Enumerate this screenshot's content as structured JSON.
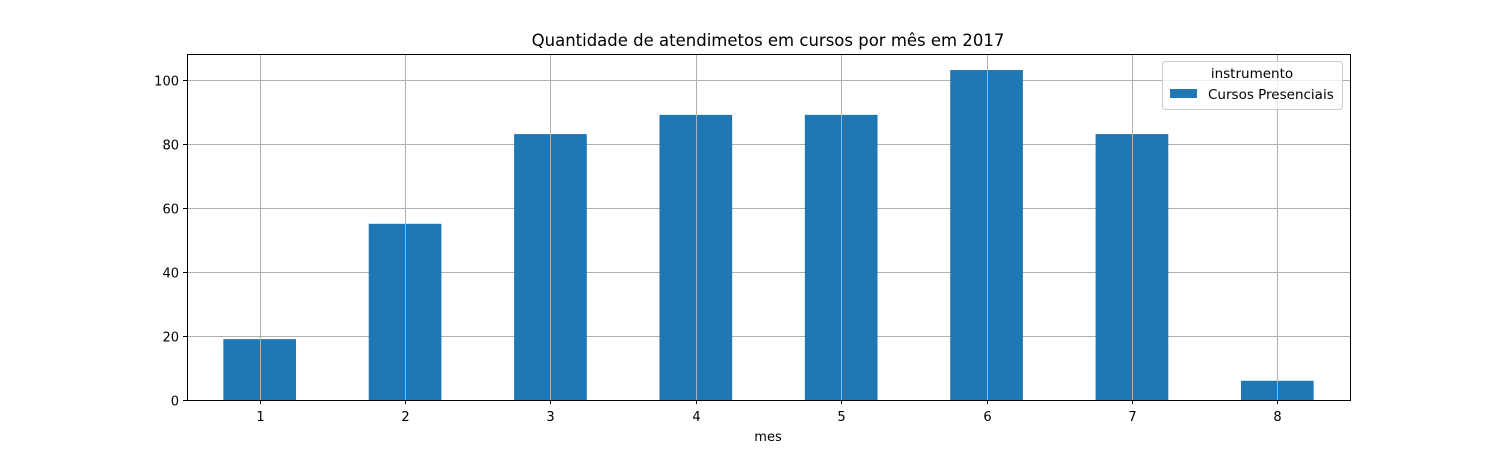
{
  "chart_data": {
    "type": "bar",
    "title": "Quantidade de atendimetos em cursos por mês em 2017",
    "xlabel": "mes",
    "ylabel": "",
    "categories": [
      "1",
      "2",
      "3",
      "4",
      "5",
      "6",
      "7",
      "8"
    ],
    "series": [
      {
        "name": "Cursos Presenciais",
        "values": [
          19,
          55,
          83,
          89,
          89,
          103,
          83,
          6
        ]
      }
    ],
    "ylim": [
      0,
      108
    ],
    "yticks": [
      0,
      20,
      40,
      60,
      80,
      100
    ],
    "grid": true,
    "legend": {
      "title": "instrumento",
      "placement": "top-right"
    },
    "colors": {
      "bar": "#1f77b4"
    }
  }
}
